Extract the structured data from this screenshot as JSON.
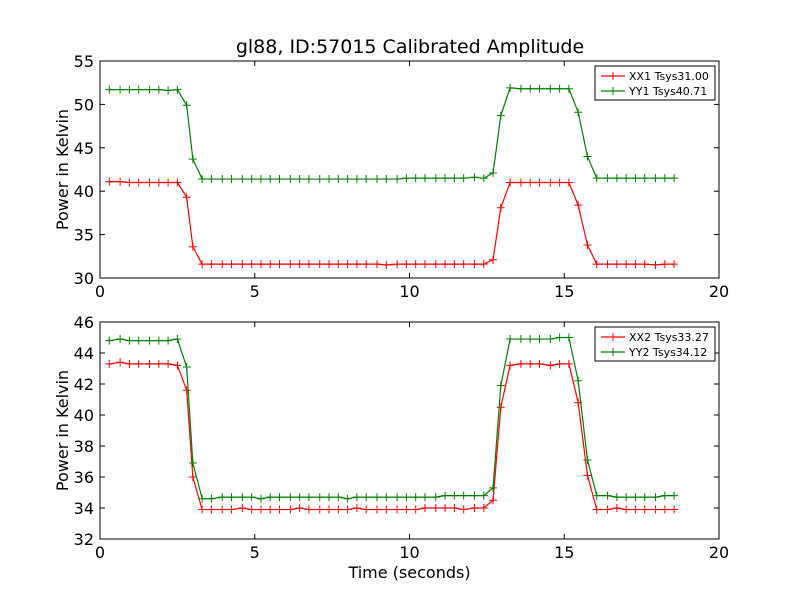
{
  "chart_data": [
    {
      "type": "line",
      "title": "gl88, ID:57015 Calibrated Amplitude",
      "xlabel": "",
      "ylabel": "Power in Kelvin",
      "xlim": [
        0,
        20
      ],
      "ylim": [
        30,
        55
      ],
      "xticks": [
        "0",
        "5",
        "10",
        "15",
        "20"
      ],
      "yticks": [
        "30",
        "35",
        "40",
        "45",
        "50",
        "55"
      ],
      "legend_position": "top-right",
      "x": [
        0.3,
        0.65,
        0.95,
        1.25,
        1.6,
        1.9,
        2.2,
        2.5,
        2.8,
        3.0,
        3.3,
        3.6,
        3.95,
        4.25,
        4.6,
        4.9,
        5.2,
        5.5,
        5.8,
        6.15,
        6.45,
        6.75,
        7.1,
        7.4,
        7.7,
        8.0,
        8.3,
        8.6,
        8.95,
        9.25,
        9.6,
        9.9,
        10.2,
        10.5,
        10.85,
        11.15,
        11.45,
        11.75,
        12.1,
        12.4,
        12.7,
        12.95,
        13.25,
        13.6,
        13.9,
        14.2,
        14.55,
        14.85,
        15.15,
        15.45,
        15.75,
        16.05,
        16.4,
        16.7,
        17.0,
        17.3,
        17.6,
        17.95,
        18.25,
        18.55
      ],
      "series": [
        {
          "name": "XX1 Tsys31.00",
          "color": "#ff0000",
          "values": [
            41.1,
            41.1,
            41.0,
            41.0,
            41.0,
            41.0,
            41.0,
            41.0,
            39.3,
            33.6,
            31.6,
            31.6,
            31.6,
            31.6,
            31.6,
            31.6,
            31.6,
            31.6,
            31.6,
            31.6,
            31.6,
            31.6,
            31.6,
            31.6,
            31.6,
            31.6,
            31.6,
            31.6,
            31.6,
            31.5,
            31.6,
            31.6,
            31.6,
            31.6,
            31.6,
            31.6,
            31.6,
            31.6,
            31.6,
            31.6,
            32.1,
            38.1,
            41.0,
            41.0,
            41.0,
            41.0,
            41.0,
            41.0,
            41.0,
            38.4,
            33.8,
            31.6,
            31.6,
            31.6,
            31.6,
            31.6,
            31.6,
            31.5,
            31.6,
            31.6
          ]
        },
        {
          "name": "YY1 Tsys40.71",
          "color": "#008000",
          "values": [
            51.7,
            51.7,
            51.7,
            51.7,
            51.7,
            51.7,
            51.6,
            51.7,
            49.9,
            43.7,
            41.4,
            41.4,
            41.4,
            41.4,
            41.4,
            41.4,
            41.4,
            41.4,
            41.4,
            41.4,
            41.4,
            41.4,
            41.4,
            41.4,
            41.4,
            41.4,
            41.4,
            41.4,
            41.4,
            41.4,
            41.4,
            41.5,
            41.5,
            41.5,
            41.5,
            41.5,
            41.5,
            41.5,
            41.6,
            41.5,
            42.1,
            48.7,
            51.9,
            51.8,
            51.8,
            51.8,
            51.8,
            51.8,
            51.8,
            49.1,
            44.0,
            41.5,
            41.5,
            41.5,
            41.5,
            41.5,
            41.5,
            41.5,
            41.5,
            41.5
          ]
        }
      ]
    },
    {
      "type": "line",
      "title": "",
      "xlabel": "Time (seconds)",
      "ylabel": "Power in Kelvin",
      "xlim": [
        0,
        20
      ],
      "ylim": [
        32,
        46
      ],
      "xticks": [
        "0",
        "5",
        "10",
        "15",
        "20"
      ],
      "yticks": [
        "32",
        "34",
        "36",
        "38",
        "40",
        "42",
        "44",
        "46"
      ],
      "legend_position": "top-right",
      "x": [
        0.3,
        0.65,
        0.95,
        1.25,
        1.6,
        1.9,
        2.2,
        2.5,
        2.8,
        3.0,
        3.3,
        3.6,
        3.95,
        4.25,
        4.6,
        4.9,
        5.2,
        5.5,
        5.8,
        6.15,
        6.45,
        6.75,
        7.1,
        7.4,
        7.7,
        8.0,
        8.3,
        8.6,
        8.95,
        9.25,
        9.6,
        9.9,
        10.2,
        10.5,
        10.85,
        11.15,
        11.45,
        11.75,
        12.1,
        12.4,
        12.7,
        12.95,
        13.25,
        13.6,
        13.9,
        14.2,
        14.55,
        14.85,
        15.15,
        15.45,
        15.75,
        16.05,
        16.4,
        16.7,
        17.0,
        17.3,
        17.6,
        17.95,
        18.25,
        18.55
      ],
      "series": [
        {
          "name": "XX2 Tsys33.27",
          "color": "#ff0000",
          "values": [
            43.3,
            43.4,
            43.3,
            43.3,
            43.3,
            43.3,
            43.3,
            43.2,
            41.6,
            36.0,
            33.9,
            33.9,
            33.9,
            33.9,
            34.0,
            33.9,
            33.9,
            33.9,
            33.9,
            33.9,
            34.0,
            33.9,
            33.9,
            33.9,
            33.9,
            33.9,
            34.0,
            33.9,
            33.9,
            33.9,
            33.9,
            33.9,
            33.9,
            34.0,
            34.0,
            34.0,
            34.0,
            33.9,
            34.0,
            34.0,
            34.5,
            40.5,
            43.2,
            43.3,
            43.3,
            43.3,
            43.2,
            43.3,
            43.3,
            40.8,
            36.1,
            33.9,
            33.9,
            34.0,
            33.9,
            33.9,
            33.9,
            33.9,
            33.9,
            33.9
          ]
        },
        {
          "name": "YY2 Tsys34.12",
          "color": "#008000",
          "values": [
            44.8,
            44.9,
            44.8,
            44.8,
            44.8,
            44.8,
            44.8,
            44.9,
            43.1,
            36.9,
            34.6,
            34.6,
            34.7,
            34.7,
            34.7,
            34.7,
            34.6,
            34.7,
            34.7,
            34.7,
            34.7,
            34.7,
            34.7,
            34.7,
            34.7,
            34.6,
            34.7,
            34.7,
            34.7,
            34.7,
            34.7,
            34.7,
            34.7,
            34.7,
            34.7,
            34.8,
            34.8,
            34.8,
            34.8,
            34.8,
            35.3,
            41.9,
            44.9,
            44.9,
            44.9,
            44.9,
            44.9,
            45.0,
            45.0,
            42.2,
            37.1,
            34.8,
            34.8,
            34.7,
            34.7,
            34.7,
            34.7,
            34.7,
            34.8,
            34.8
          ]
        }
      ]
    }
  ]
}
